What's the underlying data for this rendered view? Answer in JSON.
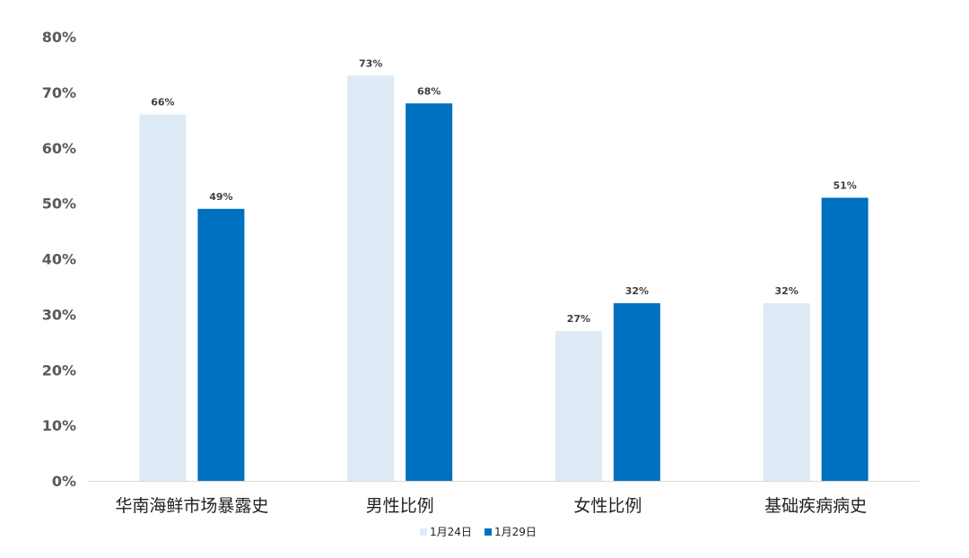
{
  "chart_data": {
    "type": "bar",
    "title": "",
    "xlabel": "",
    "ylabel": "",
    "categories": [
      "华南海鲜市场暴露史",
      "男性比例",
      "女性比例",
      "基础疾病病史"
    ],
    "series": [
      {
        "name": "1月24日",
        "values": [
          66,
          73,
          27,
          32
        ],
        "color": "#DEEAF6"
      },
      {
        "name": "1月29日",
        "values": [
          49,
          68,
          32,
          51
        ],
        "color": "#0070C0"
      }
    ],
    "ylim": [
      0,
      80
    ],
    "yticks": [
      0,
      10,
      20,
      30,
      40,
      50,
      60,
      70,
      80
    ],
    "tick_suffix": "%",
    "label_suffix": "%",
    "grid": false,
    "legend_position": "bottom"
  }
}
